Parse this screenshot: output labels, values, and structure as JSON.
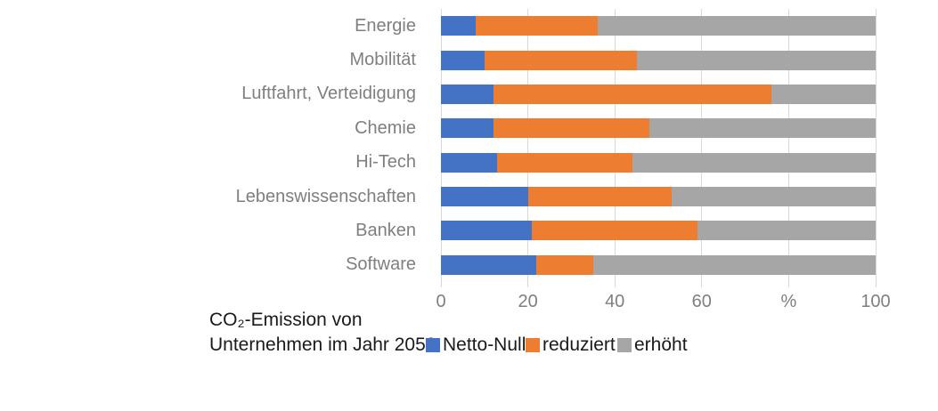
{
  "chart_data": {
    "type": "bar",
    "orientation": "horizontal",
    "stacked": true,
    "title": "",
    "caption_line1": "CO₂-Emission von",
    "caption_line2": "Unternehmen im Jahr 2050:",
    "categories": [
      "Energie",
      "Mobilität",
      "Luftfahrt, Verteidigung",
      "Chemie",
      "Hi-Tech",
      "Lebenswissenschaften",
      "Banken",
      "Software"
    ],
    "series": [
      {
        "name": "Netto-Null",
        "color": "#4472C4",
        "values": [
          8,
          10,
          12,
          12,
          13,
          20,
          21,
          22
        ]
      },
      {
        "name": "reduziert",
        "color": "#ED7D31",
        "values": [
          28,
          35,
          64,
          36,
          31,
          33,
          38,
          13
        ]
      },
      {
        "name": "erhöht",
        "color": "#A6A6A6",
        "values": [
          64,
          55,
          24,
          52,
          56,
          47,
          41,
          65
        ]
      }
    ],
    "xlim": [
      0,
      100
    ],
    "x_ticks": [
      {
        "value": 0,
        "label": "0"
      },
      {
        "value": 20,
        "label": "20"
      },
      {
        "value": 40,
        "label": "40"
      },
      {
        "value": 60,
        "label": "60"
      },
      {
        "value": 80,
        "label": "%"
      },
      {
        "value": 100,
        "label": "100"
      }
    ],
    "grid": "vertical",
    "gridline_color": "#d9d9d9",
    "label_color": "#7f7f7f",
    "caption_color": "#1a1a1a",
    "legend_position": "bottom",
    "legend_x_offsets": [
      478,
      590,
      693
    ]
  }
}
